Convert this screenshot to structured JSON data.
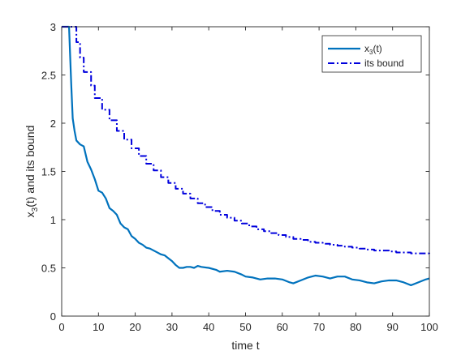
{
  "chart_data": {
    "type": "line",
    "title": "",
    "xlabel": "time t",
    "ylabel_main": "x",
    "ylabel_sub": "3",
    "ylabel_rest": "(t) and its bound",
    "xlim": [
      0,
      100
    ],
    "ylim": [
      0,
      3
    ],
    "xticks": [
      0,
      10,
      20,
      30,
      40,
      50,
      60,
      70,
      80,
      90,
      100
    ],
    "yticks": [
      0,
      0.5,
      1,
      1.5,
      2,
      2.5,
      3
    ],
    "ytick_labels": [
      "0",
      "0.5",
      "1",
      "1.5",
      "2",
      "2.5",
      "3"
    ],
    "grid": false,
    "legend_position": "top-right",
    "series": [
      {
        "name_main": "x",
        "name_sub": "3",
        "name_rest": "(t)",
        "color": "#0072BD",
        "style": "solid",
        "points": [
          [
            0,
            3
          ],
          [
            1,
            3
          ],
          [
            2,
            3
          ],
          [
            2.6,
            2.4
          ],
          [
            3,
            2.05
          ],
          [
            3.5,
            1.92
          ],
          [
            4,
            1.82
          ],
          [
            5,
            1.78
          ],
          [
            6,
            1.76
          ],
          [
            7,
            1.6
          ],
          [
            8,
            1.52
          ],
          [
            9,
            1.42
          ],
          [
            10,
            1.3
          ],
          [
            11,
            1.28
          ],
          [
            12,
            1.22
          ],
          [
            13,
            1.12
          ],
          [
            14,
            1.09
          ],
          [
            15,
            1.05
          ],
          [
            16,
            0.96
          ],
          [
            17,
            0.92
          ],
          [
            18,
            0.9
          ],
          [
            19,
            0.83
          ],
          [
            20,
            0.8
          ],
          [
            21,
            0.76
          ],
          [
            22,
            0.74
          ],
          [
            23,
            0.71
          ],
          [
            24,
            0.7
          ],
          [
            25,
            0.68
          ],
          [
            26,
            0.66
          ],
          [
            27,
            0.64
          ],
          [
            28,
            0.63
          ],
          [
            29,
            0.6
          ],
          [
            30,
            0.57
          ],
          [
            31,
            0.53
          ],
          [
            32,
            0.5
          ],
          [
            33,
            0.5
          ],
          [
            34,
            0.51
          ],
          [
            35,
            0.51
          ],
          [
            36,
            0.5
          ],
          [
            37,
            0.52
          ],
          [
            38,
            0.51
          ],
          [
            40,
            0.5
          ],
          [
            42,
            0.48
          ],
          [
            43,
            0.46
          ],
          [
            45,
            0.47
          ],
          [
            47,
            0.46
          ],
          [
            49,
            0.43
          ],
          [
            50,
            0.41
          ],
          [
            52,
            0.4
          ],
          [
            54,
            0.38
          ],
          [
            56,
            0.39
          ],
          [
            58,
            0.39
          ],
          [
            60,
            0.38
          ],
          [
            62,
            0.35
          ],
          [
            63,
            0.34
          ],
          [
            65,
            0.37
          ],
          [
            67,
            0.4
          ],
          [
            69,
            0.42
          ],
          [
            71,
            0.41
          ],
          [
            73,
            0.39
          ],
          [
            75,
            0.41
          ],
          [
            77,
            0.41
          ],
          [
            79,
            0.38
          ],
          [
            81,
            0.37
          ],
          [
            83,
            0.35
          ],
          [
            85,
            0.34
          ],
          [
            87,
            0.36
          ],
          [
            89,
            0.37
          ],
          [
            91,
            0.37
          ],
          [
            93,
            0.35
          ],
          [
            95,
            0.32
          ],
          [
            97,
            0.35
          ],
          [
            99,
            0.38
          ],
          [
            100,
            0.39
          ]
        ]
      },
      {
        "name": "its bound",
        "color": "#0000DD",
        "style": "dashdot",
        "steps": [
          [
            0,
            3
          ],
          [
            2,
            3
          ],
          [
            4,
            2.84
          ],
          [
            5,
            2.68
          ],
          [
            6,
            2.53
          ],
          [
            8,
            2.39
          ],
          [
            9,
            2.26
          ],
          [
            11,
            2.14
          ],
          [
            13,
            2.03
          ],
          [
            15,
            1.92
          ],
          [
            17,
            1.83
          ],
          [
            19,
            1.74
          ],
          [
            21,
            1.66
          ],
          [
            23,
            1.58
          ],
          [
            25,
            1.51
          ],
          [
            27,
            1.44
          ],
          [
            29,
            1.38
          ],
          [
            31,
            1.32
          ],
          [
            33,
            1.27
          ],
          [
            35,
            1.22
          ],
          [
            37,
            1.17
          ],
          [
            39,
            1.13
          ],
          [
            41,
            1.09
          ],
          [
            43,
            1.05
          ],
          [
            45,
            1.02
          ],
          [
            47,
            0.99
          ],
          [
            49,
            0.96
          ],
          [
            51,
            0.93
          ],
          [
            53,
            0.9
          ],
          [
            55,
            0.88
          ],
          [
            57,
            0.86
          ],
          [
            59,
            0.84
          ],
          [
            61,
            0.82
          ],
          [
            63,
            0.8
          ],
          [
            65,
            0.79
          ],
          [
            67,
            0.77
          ],
          [
            69,
            0.76
          ],
          [
            71,
            0.75
          ],
          [
            73,
            0.74
          ],
          [
            75,
            0.73
          ],
          [
            77,
            0.72
          ],
          [
            79,
            0.71
          ],
          [
            81,
            0.7
          ],
          [
            83,
            0.69
          ],
          [
            85,
            0.68
          ],
          [
            87,
            0.68
          ],
          [
            89,
            0.67
          ],
          [
            91,
            0.66
          ],
          [
            93,
            0.66
          ],
          [
            95,
            0.65
          ],
          [
            97,
            0.65
          ],
          [
            100,
            0.64
          ]
        ]
      }
    ]
  }
}
